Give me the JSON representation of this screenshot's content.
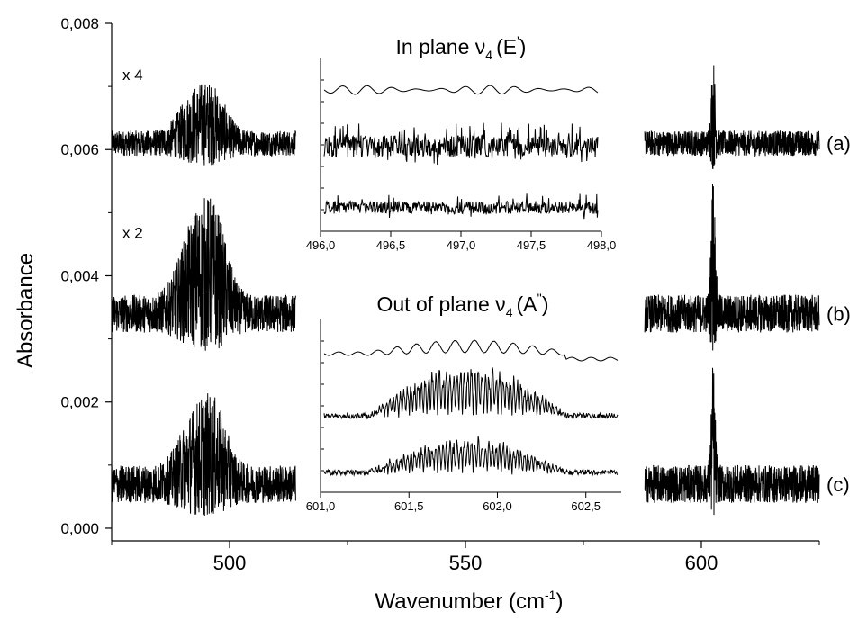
{
  "chart_data": {
    "type": "line",
    "xlabel": "Wavenumber (cm",
    "xlabel_sup": "-1",
    "xlabel_end": ")",
    "ylabel": "Absorbance",
    "xlim": [
      475,
      625
    ],
    "ylim": [
      -0.0002,
      0.008
    ],
    "x_ticks": [
      500,
      550,
      600
    ],
    "x_tick_labels": [
      "500",
      "550",
      "600"
    ],
    "y_ticks": [
      0.0,
      0.002,
      0.004,
      0.006,
      0.008
    ],
    "y_tick_labels": [
      "0,000",
      "0,002",
      "0,004",
      "0,006",
      "0,008"
    ],
    "grid": false,
    "x_break": [
      514,
      588
    ],
    "multipliers": [
      {
        "text": "x 4",
        "trace": "(a)"
      },
      {
        "text": "x 2",
        "trace": "(b)"
      }
    ],
    "series": [
      {
        "name": "(a)",
        "baseline": 0.0061,
        "noise": 0.0004,
        "scale": 4,
        "bands": [
          {
            "center": 492.5,
            "width": 3,
            "height": 0.0006
          },
          {
            "center": 497,
            "width": 2.5,
            "height": 0.0005
          },
          {
            "center": 602.5,
            "width": 0.4,
            "height": 0.0012
          }
        ]
      },
      {
        "name": "(b)",
        "baseline": 0.0034,
        "noise": 0.0006,
        "scale": 2,
        "bands": [
          {
            "center": 492.5,
            "width": 3,
            "height": 0.0011
          },
          {
            "center": 497,
            "width": 2.5,
            "height": 0.0011
          },
          {
            "center": 602.5,
            "width": 0.4,
            "height": 0.0021
          }
        ]
      },
      {
        "name": "(c)",
        "baseline": 0.0007,
        "noise": 0.0006,
        "scale": 1,
        "bands": [
          {
            "center": 492.5,
            "width": 3,
            "height": 0.0008
          },
          {
            "center": 497,
            "width": 2.5,
            "height": 0.0008
          },
          {
            "center": 602.5,
            "width": 0.4,
            "height": 0.0017
          }
        ]
      }
    ],
    "insets": [
      {
        "title": "In plane ν",
        "title_sub": "4",
        "title_paren": "(E",
        "title_sup": "'",
        "title_close": ")",
        "xlim": [
          496.0,
          498.0
        ],
        "x_ticks": [
          496.0,
          496.5,
          497.0,
          497.5,
          498.0
        ],
        "x_tick_labels": [
          "496,0",
          "496,5",
          "497,0",
          "497,5",
          "498,0"
        ],
        "traces": [
          "(a)",
          "(b)",
          "(c)"
        ]
      },
      {
        "title": "Out of plane ν",
        "title_sub": "4",
        "title_paren": "(A",
        "title_sup": "''",
        "title_close": ")",
        "xlim": [
          601.0,
          602.7
        ],
        "x_ticks": [
          601.0,
          601.5,
          602.0,
          602.5
        ],
        "x_tick_labels": [
          "601,0",
          "601,5",
          "602,0",
          "602,5"
        ],
        "traces": [
          "(a)",
          "(b)",
          "(c)"
        ]
      }
    ]
  },
  "colors": {
    "line": "#000000",
    "background": "#ffffff"
  }
}
